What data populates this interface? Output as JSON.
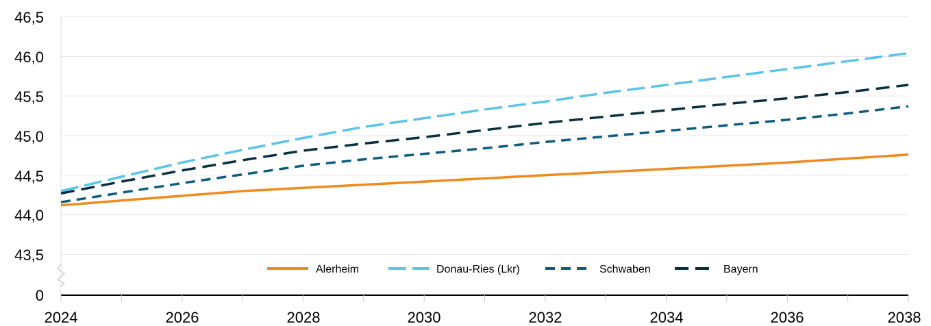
{
  "chart_data": {
    "type": "line",
    "title": "",
    "xlabel": "",
    "ylabel": "",
    "x": [
      2024,
      2025,
      2026,
      2027,
      2028,
      2029,
      2030,
      2031,
      2032,
      2033,
      2034,
      2035,
      2036,
      2037,
      2038
    ],
    "x_tick_labels": [
      "2024",
      "2026",
      "2028",
      "2030",
      "2032",
      "2034",
      "2036",
      "2038"
    ],
    "y_tick_labels": [
      "0",
      "43,5",
      "44,0",
      "44,5",
      "45,0",
      "45,5",
      "46,0",
      "46,5"
    ],
    "ylim": [
      43.5,
      46.5
    ],
    "y_axis_break": true,
    "grid": false,
    "legend_position": "bottom-center",
    "series": [
      {
        "name": "Alerheim",
        "color": "#f08a1c",
        "style": "solid",
        "values": [
          44.12,
          44.18,
          44.24,
          44.3,
          44.34,
          44.38,
          44.42,
          44.46,
          44.5,
          44.54,
          44.58,
          44.62,
          44.66,
          44.71,
          44.76
        ]
      },
      {
        "name": "Donau-Ries (Lkr)",
        "color": "#5bc4e8",
        "style": "dashed-long",
        "values": [
          44.3,
          44.48,
          44.66,
          44.82,
          44.97,
          45.11,
          45.22,
          45.33,
          45.43,
          45.54,
          45.64,
          45.74,
          45.84,
          45.94,
          46.04
        ]
      },
      {
        "name": "Schwaben",
        "color": "#0e5c80",
        "style": "dashed",
        "values": [
          44.16,
          44.28,
          44.4,
          44.51,
          44.62,
          44.7,
          44.77,
          44.84,
          44.92,
          44.99,
          45.06,
          45.13,
          45.2,
          45.28,
          45.37
        ]
      },
      {
        "name": "Bayern",
        "color": "#0a2f40",
        "style": "dashed-long",
        "values": [
          44.27,
          44.42,
          44.56,
          44.69,
          44.81,
          44.9,
          44.98,
          45.07,
          45.16,
          45.24,
          45.32,
          45.4,
          45.47,
          45.55,
          45.64
        ]
      }
    ]
  }
}
